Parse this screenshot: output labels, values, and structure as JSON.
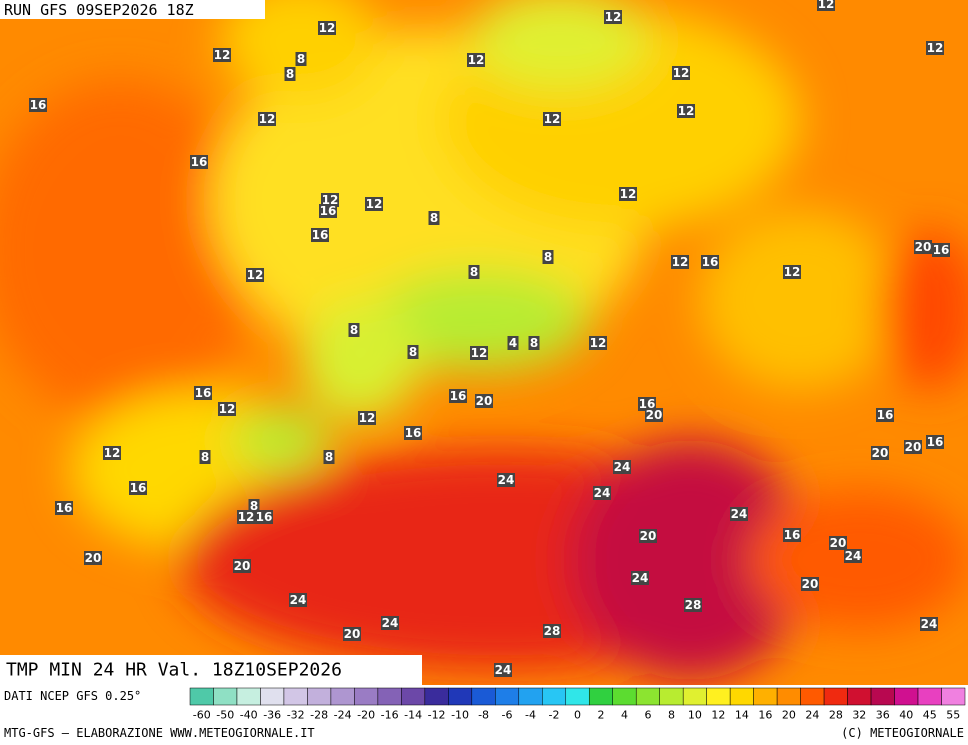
{
  "header": {
    "run": "RUN GFS 09SEP2026 18Z"
  },
  "map": {
    "labels": [
      12,
      12,
      12,
      12,
      12,
      8,
      8,
      12,
      12,
      16,
      12,
      12,
      12,
      16,
      12,
      12,
      16,
      12,
      8,
      16,
      20,
      16,
      8,
      12,
      16,
      12,
      8,
      12,
      8,
      8,
      12,
      12,
      4,
      8,
      16,
      12,
      16,
      20,
      16,
      20,
      16,
      12,
      16,
      20,
      16,
      20,
      12,
      8,
      8,
      24,
      24,
      16,
      24,
      8,
      12,
      16,
      16,
      24,
      16,
      20,
      20,
      24,
      20,
      20,
      24,
      20,
      24,
      28,
      24,
      20,
      28,
      24,
      24
    ]
  },
  "footer": {
    "title": "TMP MIN 24 HR Val. 18Z10SEP2026",
    "source": "DATI NCEP GFS 0.25°",
    "credit": "MTG-GFS — ELABORAZIONE WWW.METEOGIORNALE.IT",
    "copyright": "(C) METEOGIORNALE"
  },
  "colorbar": {
    "ticks": [
      -60,
      -50,
      -40,
      -36,
      -32,
      -28,
      -24,
      -20,
      -16,
      -14,
      -12,
      -10,
      -8,
      -6,
      -4,
      -2,
      0,
      2,
      4,
      6,
      8,
      10,
      12,
      14,
      16,
      20,
      24,
      28,
      32,
      36,
      40,
      45,
      55
    ],
    "colors": [
      "#4fc9a8",
      "#8fe0c4",
      "#c6efe0",
      "#e0e0ee",
      "#d2c6e6",
      "#c2b0dc",
      "#ae96d0",
      "#9a7cc4",
      "#8462b6",
      "#6c48a8",
      "#3a2c9c",
      "#2038b8",
      "#1a5ad6",
      "#1e7ee8",
      "#22a2f0",
      "#28c6f4",
      "#30e6e8",
      "#30d040",
      "#5cdc30",
      "#8ce430",
      "#b8ec30",
      "#e0f030",
      "#fff020",
      "#ffd800",
      "#ffb000",
      "#ff8c00",
      "#ff5a00",
      "#f02a10",
      "#d01030",
      "#b80850",
      "#d01090",
      "#e840c0",
      "#f080e0"
    ]
  }
}
